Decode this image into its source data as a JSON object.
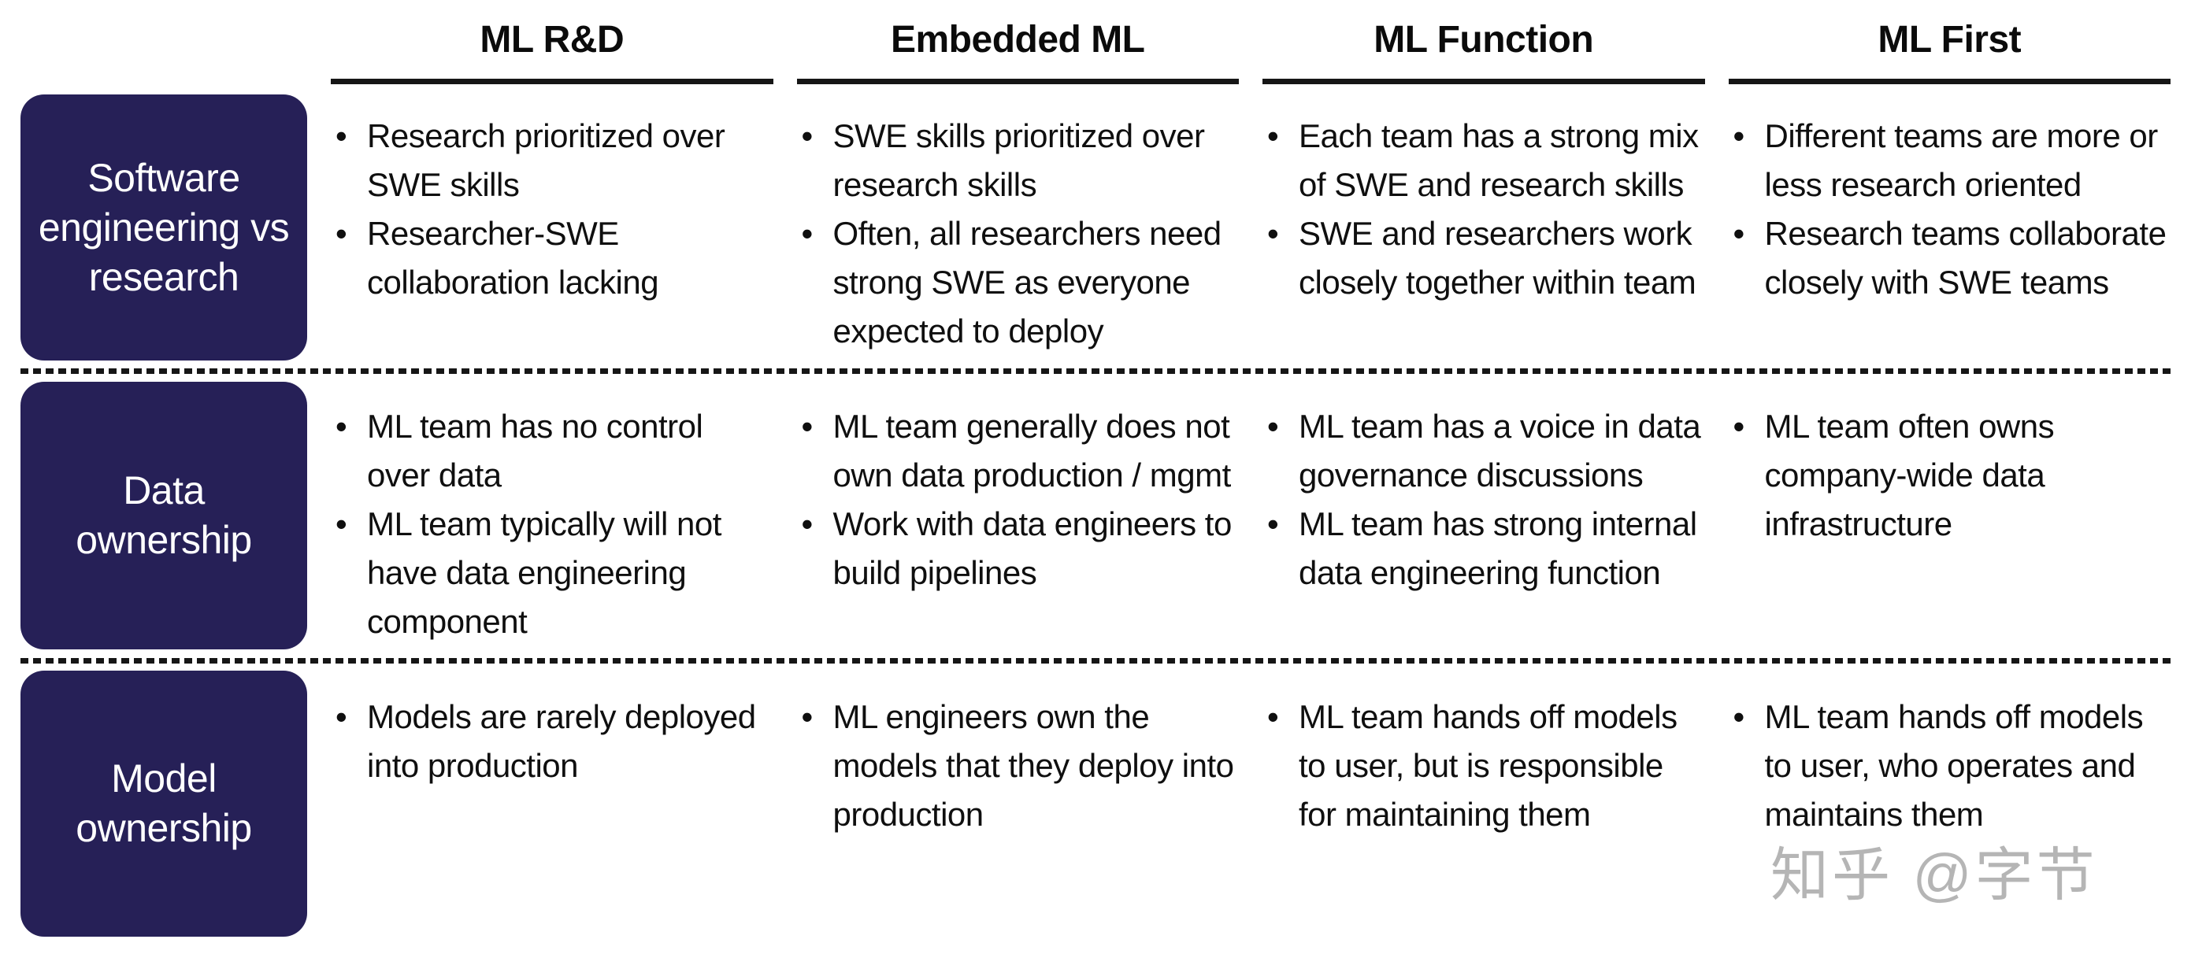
{
  "table": {
    "columns": [
      {
        "label": "ML R&D"
      },
      {
        "label": "Embedded ML"
      },
      {
        "label": "ML Function"
      },
      {
        "label": "ML First"
      }
    ],
    "rows": [
      {
        "label": "Software engineering vs research",
        "cells": [
          [
            "Research prioritized over SWE skills",
            "Researcher-SWE collaboration lacking"
          ],
          [
            "SWE skills prioritized over research skills",
            "Often, all researchers need strong SWE as everyone expected to deploy"
          ],
          [
            "Each team has a strong mix of SWE and research skills",
            "SWE and researchers work closely together within team"
          ],
          [
            "Different teams are more or less research oriented",
            "Research teams collaborate closely with SWE teams"
          ]
        ]
      },
      {
        "label": "Data ownership",
        "cells": [
          [
            "ML team has no control over data",
            "ML team typically will not have data engineering component"
          ],
          [
            "ML team generally does not own data production / mgmt",
            "Work with data engineers to build pipelines"
          ],
          [
            "ML team has a voice in data governance discussions",
            "ML team has strong internal data engineering function"
          ],
          [
            "ML team often owns company-wide data infrastructure"
          ]
        ]
      },
      {
        "label": "Model ownership",
        "cells": [
          [
            "Models are rarely deployed into production"
          ],
          [
            "ML engineers own the models that they deploy into production"
          ],
          [
            "ML team hands off models to user, but is responsible for maintaining them"
          ],
          [
            "ML team hands off models to user, who operates and maintains them"
          ]
        ]
      }
    ]
  },
  "watermark": {
    "text": "知乎 @字节"
  },
  "colors": {
    "row_label_bg": "#262057",
    "row_label_text": "#ffffff",
    "body_text": "#0f0f0f",
    "rule_line": "#161616",
    "watermark_text": "#b5b5b5",
    "background": "#ffffff"
  }
}
